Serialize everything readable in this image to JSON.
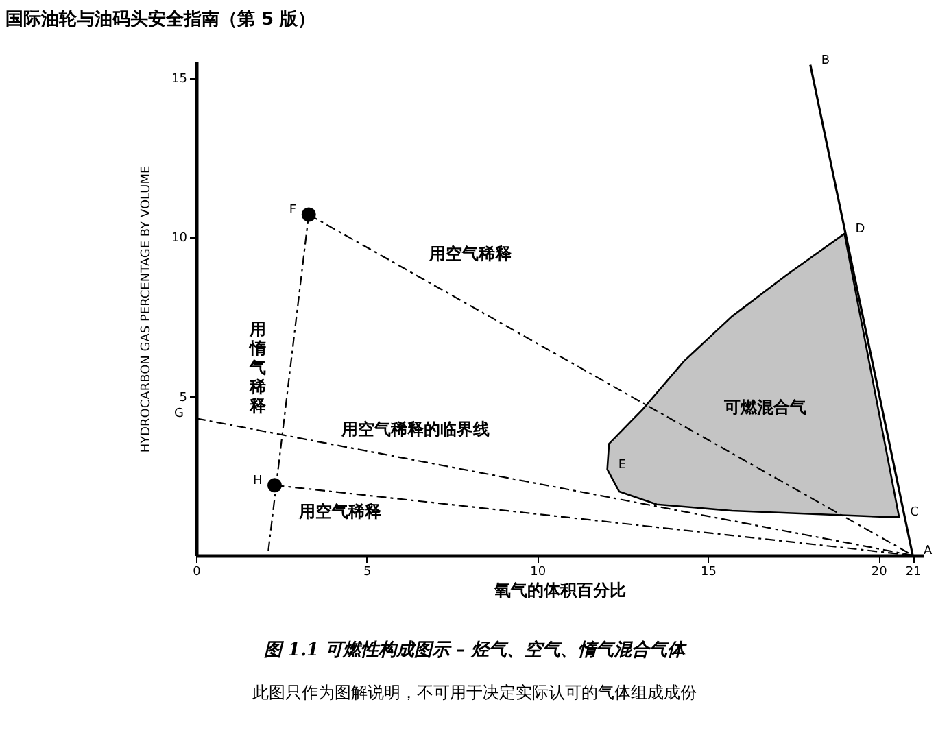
{
  "chart_data": {
    "type": "line",
    "title": "国际油轮与油码头安全指南（第 5 版）",
    "xlabel": "氧气的体积百分比",
    "ylabel": "HYDROCARBON GAS    PERCENTAGE BY VOLUME",
    "xlim": [
      0,
      21.3
    ],
    "ylim": [
      0,
      15.5
    ],
    "xticks": [
      0,
      5,
      10,
      15,
      20,
      21
    ],
    "yticks": [
      5,
      10,
      15
    ],
    "grid": false,
    "series": [
      {
        "type": "area",
        "color": "#c4c4c4",
        "x": [
          19,
          17.3,
          15.7,
          14.3,
          13.1,
          12.1,
          12.05,
          12.4,
          13.5,
          15.7,
          20.3,
          20.6
        ],
        "values": [
          10.1,
          8.8,
          7.5,
          6.1,
          4.6,
          3.5,
          2.7,
          2.0,
          1.6,
          1.4,
          1.2,
          1.2
        ]
      },
      {
        "color": "#000000",
        "line_style": "solid",
        "x": [
          21,
          18
        ],
        "values": [
          0,
          15.4
        ]
      },
      {
        "color": "#000000",
        "line_style": "dashed",
        "x": [
          3.3,
          21
        ],
        "values": [
          10.7,
          0
        ]
      },
      {
        "color": "#000000",
        "line_style": "dashed",
        "x": [
          0,
          21
        ],
        "values": [
          4.3,
          0
        ]
      },
      {
        "color": "#000000",
        "line_style": "dashed",
        "x": [
          2.3,
          21
        ],
        "values": [
          2.2,
          0
        ]
      },
      {
        "color": "#000000",
        "line_style": "dashed",
        "x": [
          3.3,
          2.1
        ],
        "values": [
          10.7,
          0
        ]
      },
      {
        "type": "scatter",
        "color": "#000000",
        "x": [
          3.3,
          2.3
        ],
        "values": [
          10.7,
          2.2
        ]
      }
    ],
    "annotations": [
      "用空气稀释",
      "用惰气稀释",
      "用空气稀释的临界线",
      "用空气稀释",
      "可燃混合气",
      {
        "text": "A",
        "x": 21,
        "y": 0
      },
      {
        "text": "B",
        "x": 18,
        "y": 15.4
      },
      {
        "text": "C",
        "x": 20.6,
        "y": 1.2
      },
      {
        "text": "D",
        "x": 19,
        "y": 10.1
      },
      {
        "text": "E",
        "x": 12.05,
        "y": 2.7
      },
      {
        "text": "F",
        "x": 3.3,
        "y": 10.7
      },
      {
        "text": "G",
        "x": 0,
        "y": 4.3
      },
      {
        "text": "H",
        "x": 2.3,
        "y": 2.2
      },
      "图 1.1 可燃性构成图示 – 烃气、空气、惰气混合气体",
      "此图只作为图解说明，不可用于决定实际认可的气体组成成份"
    ]
  }
}
